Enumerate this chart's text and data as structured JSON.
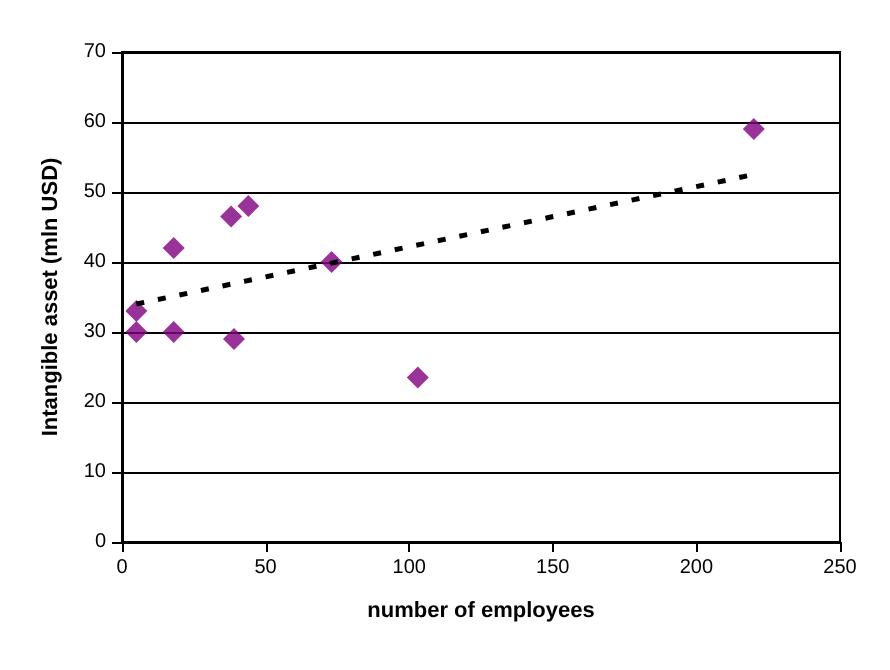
{
  "chart_data": {
    "type": "scatter",
    "xlabel": "number of employees",
    "ylabel": "Intangible asset (mln USD)",
    "series": [
      {
        "color": "#800080",
        "marker": "diamond",
        "x": [
          5,
          5,
          18,
          18,
          38,
          44,
          39,
          73,
          103,
          220
        ],
        "values": [
          33,
          30,
          42,
          30,
          46.5,
          48,
          29,
          40,
          23.5,
          59
        ]
      },
      {
        "type": "line",
        "color": "#000000",
        "line_style": "dashed",
        "marker": "none",
        "x": [
          5,
          220
        ],
        "values": [
          34,
          52.5
        ]
      }
    ],
    "xlim": [
      0,
      250
    ],
    "xticks": [
      0,
      50,
      100,
      150,
      200,
      250
    ],
    "ylim": [
      0,
      70
    ],
    "yticks": [
      0,
      10,
      20,
      30,
      40,
      50,
      60,
      70
    ],
    "grid": "y"
  }
}
